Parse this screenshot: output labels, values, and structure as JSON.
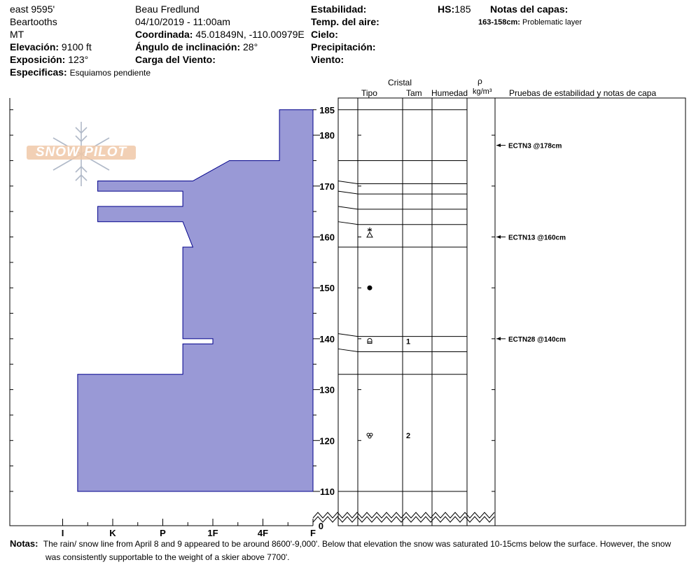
{
  "header": {
    "location": "east 9595'",
    "range": "Beartooths",
    "state": "MT",
    "observer": "Beau  Fredlund",
    "datetime": "04/10/2019 - 11:00am",
    "elevation_label": "Elevación:",
    "elevation_value": "9100 ft",
    "aspect_label": "Exposición:",
    "aspect_value": "123°",
    "specifics_label": "Especificas:",
    "specifics_value": "Esquiamos pendiente",
    "coord_label": "Coordinada:",
    "coord_value": "45.01849N, -110.00979E",
    "slope_label": "Ángulo de inclinación:",
    "slope_value": "28°",
    "wind_load_label": "Carga del Viento:",
    "stability_label": "Estabilidad:",
    "air_temp_label": "Temp. del aire:",
    "sky_label": "Cielo:",
    "precip_label": "Precipitación:",
    "wind_label": "Viento:",
    "hs_label": "HS:",
    "hs_value": "185",
    "layer_notes_label": "Notas del capas:",
    "layer_note_range": "163-158cm:",
    "layer_note_text": "Problematic layer"
  },
  "logo_text": "SNOW PILOT",
  "columns": {
    "crystal": "Cristal",
    "type": "Tipo",
    "size": "Tam",
    "moisture": "Humedad",
    "rho": "ρ",
    "density_unit": "kg/m³",
    "tests": "Pruebas de estabilidad y notas de capa"
  },
  "notes": {
    "label": "Notas:",
    "line1": "The rain/ snow line from April 8 and 9 appeared to be around 8600'-9,000'.  Below that elevation the snow was saturated 10-15cms below the surface.  However, the snow",
    "line2": "was consistently supportable to the weight of a skier above 7700'."
  },
  "colors": {
    "hardness_fill": "#9999d6",
    "hardness_stroke": "#00008b"
  },
  "chart_data": {
    "type": "snow-profile",
    "y_axis": {
      "ylim": [
        110,
        185
      ],
      "ticks": [
        185,
        180,
        170,
        160,
        150,
        140,
        130,
        120,
        110
      ],
      "break_bottom": 0
    },
    "x_axis": {
      "ticks": [
        "I",
        "K",
        "P",
        "1F",
        "4F",
        "F"
      ],
      "scale": {
        "F": 0,
        "4F": 1,
        "1F": 2,
        "P": 3,
        "K": 4,
        "I": 5
      }
    },
    "hardness_profile": [
      {
        "depth": 185,
        "hardness": 0.67
      },
      {
        "depth": 175,
        "hardness": 0.67
      },
      {
        "depth": 175,
        "hardness": 1.67
      },
      {
        "depth": 171,
        "hardness": 2.4
      },
      {
        "depth": 171,
        "hardness": 4.3
      },
      {
        "depth": 169,
        "hardness": 4.3
      },
      {
        "depth": 169,
        "hardness": 2.6
      },
      {
        "depth": 166,
        "hardness": 2.6
      },
      {
        "depth": 166,
        "hardness": 4.3
      },
      {
        "depth": 163,
        "hardness": 4.3
      },
      {
        "depth": 163,
        "hardness": 2.6
      },
      {
        "depth": 158,
        "hardness": 2.4
      },
      {
        "depth": 158,
        "hardness": 2.6
      },
      {
        "depth": 140,
        "hardness": 2.6
      },
      {
        "depth": 140,
        "hardness": 2.0
      },
      {
        "depth": 139,
        "hardness": 2.0
      },
      {
        "depth": 139,
        "hardness": 2.6
      },
      {
        "depth": 133,
        "hardness": 2.6
      },
      {
        "depth": 133,
        "hardness": 4.7
      },
      {
        "depth": 110,
        "hardness": 4.7
      }
    ],
    "layer_boundaries": [
      185,
      175,
      171,
      169,
      166,
      163,
      158,
      141,
      138,
      133,
      110
    ],
    "crystals": [
      {
        "depth": 160.5,
        "symbol": "faceted-precip"
      },
      {
        "depth": 150,
        "symbol": "melt-form"
      },
      {
        "depth": 139.5,
        "symbol": "faceted-rounded",
        "size": "1"
      },
      {
        "depth": 121,
        "symbol": "melt-clusters",
        "size": "2"
      }
    ],
    "tests": [
      {
        "depth": 178,
        "label": "ECTN3 @178cm"
      },
      {
        "depth": 160,
        "label": "ECTN13 @160cm"
      },
      {
        "depth": 140,
        "label": "ECTN28 @140cm"
      }
    ]
  }
}
